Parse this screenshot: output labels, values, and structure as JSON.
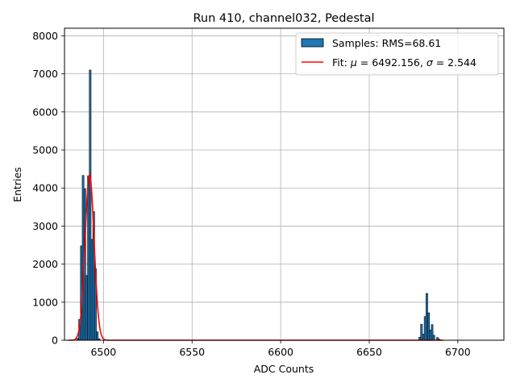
{
  "chart_data": {
    "type": "bar",
    "title": "Run 410, channel032, Pedestal",
    "xlabel": "ADC Counts",
    "ylabel": "Entries",
    "xlim": [
      6478,
      6726
    ],
    "ylim": [
      0,
      8200
    ],
    "xticks": [
      6500,
      6550,
      6600,
      6650,
      6700
    ],
    "yticks": [
      0,
      1000,
      2000,
      3000,
      4000,
      5000,
      6000,
      7000,
      8000
    ],
    "grid": true,
    "legend_position": "top-right",
    "colors": {
      "bars": "#1f77b4",
      "bar_edge": "#000000",
      "fit": "#ff0000",
      "grid": "#b0b0b0"
    },
    "histogram": {
      "name": "Samples: RMS=68.61",
      "bin_width": 1,
      "bins": [
        {
          "x": 6485,
          "count": 50
        },
        {
          "x": 6486,
          "count": 550
        },
        {
          "x": 6487,
          "count": 2480
        },
        {
          "x": 6488,
          "count": 4330
        },
        {
          "x": 6489,
          "count": 3980
        },
        {
          "x": 6490,
          "count": 1700
        },
        {
          "x": 6491,
          "count": 4320
        },
        {
          "x": 6492,
          "count": 7100
        },
        {
          "x": 6493,
          "count": 2650
        },
        {
          "x": 6494,
          "count": 3380
        },
        {
          "x": 6495,
          "count": 1880
        },
        {
          "x": 6496,
          "count": 220
        },
        {
          "x": 6497,
          "count": 40
        },
        {
          "x": 6678,
          "count": 80
        },
        {
          "x": 6679,
          "count": 420
        },
        {
          "x": 6680,
          "count": 160
        },
        {
          "x": 6681,
          "count": 620
        },
        {
          "x": 6682,
          "count": 1230
        },
        {
          "x": 6683,
          "count": 720
        },
        {
          "x": 6684,
          "count": 270
        },
        {
          "x": 6685,
          "count": 410
        },
        {
          "x": 6686,
          "count": 130
        },
        {
          "x": 6688,
          "count": 70
        },
        {
          "x": 6689,
          "count": 30
        }
      ]
    },
    "fit": {
      "name": "Fit: μ = 6492.156, σ = 2.544",
      "label_prefix": "Fit: ",
      "mu_symbol": "μ",
      "mu_text": " = 6492.156, ",
      "sigma_symbol": "σ",
      "sigma_text": " = 2.544",
      "mu": 6492.156,
      "sigma": 2.544,
      "amplitude": 4350,
      "x_range": [
        6480,
        6692
      ]
    }
  }
}
